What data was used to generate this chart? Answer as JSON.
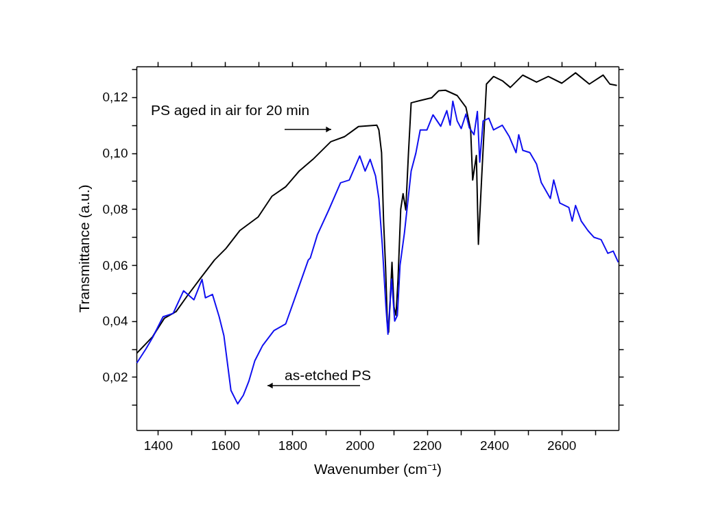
{
  "chart_data": {
    "type": "line",
    "xlabel": "Wavenumber (cm⁻¹)",
    "ylabel": "Transmittance (a.u.)",
    "xlim": [
      1336,
      2770
    ],
    "ylim": [
      0.001,
      0.131
    ],
    "xticks": [
      1400,
      {
        "value": 1500,
        "label": null
      },
      1600,
      {
        "value": 1700,
        "label": null
      },
      1800,
      {
        "value": 1900,
        "label": null
      },
      2000,
      {
        "value": 2100,
        "label": null
      },
      2200,
      {
        "value": 2300,
        "label": null
      },
      2400,
      {
        "value": 2500,
        "label": null
      },
      2600,
      {
        "value": 2700,
        "label": null
      }
    ],
    "yticks": [
      {
        "value": 0.01,
        "label": null
      },
      {
        "value": 0.02,
        "label": "0,02"
      },
      {
        "value": 0.03,
        "label": null
      },
      {
        "value": 0.04,
        "label": "0,04"
      },
      {
        "value": 0.05,
        "label": null
      },
      {
        "value": 0.06,
        "label": "0,06"
      },
      {
        "value": 0.07,
        "label": null
      },
      {
        "value": 0.08,
        "label": "0,08"
      },
      {
        "value": 0.09,
        "label": null
      },
      {
        "value": 0.1,
        "label": "0,10"
      },
      {
        "value": 0.11,
        "label": null
      },
      {
        "value": 0.12,
        "label": "0,12"
      },
      {
        "value": 0.13,
        "label": null
      }
    ],
    "grid": false,
    "line_style": "solid",
    "marker": "none",
    "series": [
      {
        "color": "#000000",
        "x": [
          1337,
          1384,
          1419,
          1454,
          1486,
          1527,
          1568,
          1602,
          1643,
          1698,
          1739,
          1780,
          1820,
          1861,
          1914,
          1955,
          1996,
          2051,
          2057,
          2065,
          2071,
          2077,
          2082,
          2086,
          2096,
          2102,
          2108,
          2114,
          2122,
          2129,
          2137,
          2145,
          2153,
          2180,
          2214,
          2235,
          2255,
          2290,
          2316,
          2330,
          2336,
          2347,
          2353,
          2363,
          2377,
          2398,
          2424,
          2448,
          2485,
          2526,
          2561,
          2601,
          2642,
          2683,
          2724,
          2744,
          2765
        ],
        "values": [
          0.0285,
          0.0344,
          0.041,
          0.0434,
          0.0488,
          0.0554,
          0.0618,
          0.0659,
          0.0723,
          0.0772,
          0.0846,
          0.088,
          0.0936,
          0.0978,
          0.1041,
          0.1059,
          0.1095,
          0.11,
          0.1083,
          0.1002,
          0.0758,
          0.059,
          0.04,
          0.036,
          0.061,
          0.045,
          0.042,
          0.055,
          0.08,
          0.0855,
          0.0797,
          0.1,
          0.118,
          0.1188,
          0.1198,
          0.1223,
          0.1225,
          0.1206,
          0.1164,
          0.1083,
          0.0904,
          0.0992,
          0.0674,
          0.0919,
          0.1247,
          0.1274,
          0.1259,
          0.1235,
          0.1279,
          0.1254,
          0.1274,
          0.125,
          0.1287,
          0.1247,
          0.1279,
          0.1247,
          0.1242
        ]
      },
      {
        "color": "#1010f0",
        "x": [
          1337,
          1364,
          1384,
          1415,
          1445,
          1476,
          1507,
          1531,
          1541,
          1562,
          1582,
          1596,
          1617,
          1637,
          1654,
          1670,
          1688,
          1711,
          1745,
          1780,
          1806,
          1847,
          1853,
          1874,
          1908,
          1943,
          1969,
          2000,
          2016,
          2031,
          2047,
          2057,
          2067,
          2078,
          2084,
          2095,
          2104,
          2112,
          2120,
          2133,
          2153,
          2167,
          2180,
          2200,
          2218,
          2241,
          2259,
          2269,
          2277,
          2290,
          2302,
          2316,
          2326,
          2340,
          2350,
          2357,
          2367,
          2384,
          2398,
          2424,
          2445,
          2465,
          2473,
          2485,
          2506,
          2526,
          2540,
          2567,
          2577,
          2595,
          2622,
          2632,
          2642,
          2659,
          2679,
          2697,
          2718,
          2738,
          2754,
          2769
        ],
        "values": [
          0.025,
          0.03,
          0.0341,
          0.0415,
          0.0427,
          0.0508,
          0.0476,
          0.0549,
          0.0483,
          0.0495,
          0.0415,
          0.0348,
          0.0152,
          0.0104,
          0.0135,
          0.0184,
          0.0258,
          0.0312,
          0.0366,
          0.039,
          0.0478,
          0.0618,
          0.0625,
          0.0708,
          0.0797,
          0.0894,
          0.0904,
          0.099,
          0.0936,
          0.0978,
          0.0919,
          0.0838,
          0.0674,
          0.045,
          0.0353,
          0.055,
          0.04,
          0.042,
          0.06,
          0.0715,
          0.0936,
          0.1,
          0.1083,
          0.1083,
          0.1137,
          0.1096,
          0.1152,
          0.11,
          0.1186,
          0.1115,
          0.1088,
          0.114,
          0.1091,
          0.1066,
          0.1149,
          0.0968,
          0.1115,
          0.1125,
          0.1083,
          0.11,
          0.1059,
          0.1002,
          0.1066,
          0.101,
          0.1002,
          0.0961,
          0.0895,
          0.0838,
          0.0904,
          0.0822,
          0.0806,
          0.0757,
          0.0813,
          0.0757,
          0.0723,
          0.0699,
          0.0691,
          0.0642,
          0.065,
          0.061
        ]
      }
    ],
    "annotations": [
      "PS aged in air for 20 min",
      "as-etched PS"
    ]
  }
}
